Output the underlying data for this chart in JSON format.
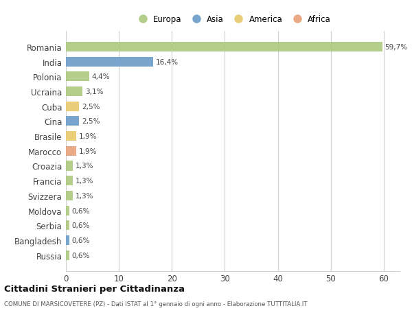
{
  "countries": [
    "Romania",
    "India",
    "Polonia",
    "Ucraina",
    "Cuba",
    "Cina",
    "Brasile",
    "Marocco",
    "Croazia",
    "Francia",
    "Svizzera",
    "Moldova",
    "Serbia",
    "Bangladesh",
    "Russia"
  ],
  "values": [
    59.7,
    16.4,
    4.4,
    3.1,
    2.5,
    2.5,
    1.9,
    1.9,
    1.3,
    1.3,
    1.3,
    0.6,
    0.6,
    0.6,
    0.6
  ],
  "labels": [
    "59,7%",
    "16,4%",
    "4,4%",
    "3,1%",
    "2,5%",
    "2,5%",
    "1,9%",
    "1,9%",
    "1,3%",
    "1,3%",
    "1,3%",
    "0,6%",
    "0,6%",
    "0,6%",
    "0,6%"
  ],
  "continents": [
    "Europa",
    "Asia",
    "Europa",
    "Europa",
    "America",
    "Asia",
    "America",
    "Africa",
    "Europa",
    "Europa",
    "Europa",
    "Europa",
    "Europa",
    "Asia",
    "Europa"
  ],
  "colors": {
    "Europa": "#adc97e",
    "Asia": "#6b9bc8",
    "America": "#e8c96a",
    "Africa": "#e8a07a"
  },
  "xlim": [
    0,
    63
  ],
  "xticks": [
    0,
    10,
    20,
    30,
    40,
    50,
    60
  ],
  "title": "Cittadini Stranieri per Cittadinanza",
  "subtitle": "COMUNE DI MARSICOVETERE (PZ) - Dati ISTAT al 1° gennaio di ogni anno - Elaborazione TUTTITALIA.IT",
  "bg_color": "#ffffff",
  "grid_color": "#d0d0d0",
  "bar_height": 0.65
}
